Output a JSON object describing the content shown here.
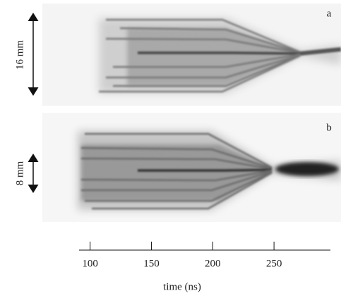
{
  "panels": [
    {
      "label": "a",
      "scale": "16 mm"
    },
    {
      "label": "b",
      "scale": "8 mm"
    }
  ],
  "axis": {
    "xlim": [
      91,
      296
    ],
    "xticks": [
      100,
      150,
      200,
      250
    ],
    "label": "time (ns)"
  }
}
